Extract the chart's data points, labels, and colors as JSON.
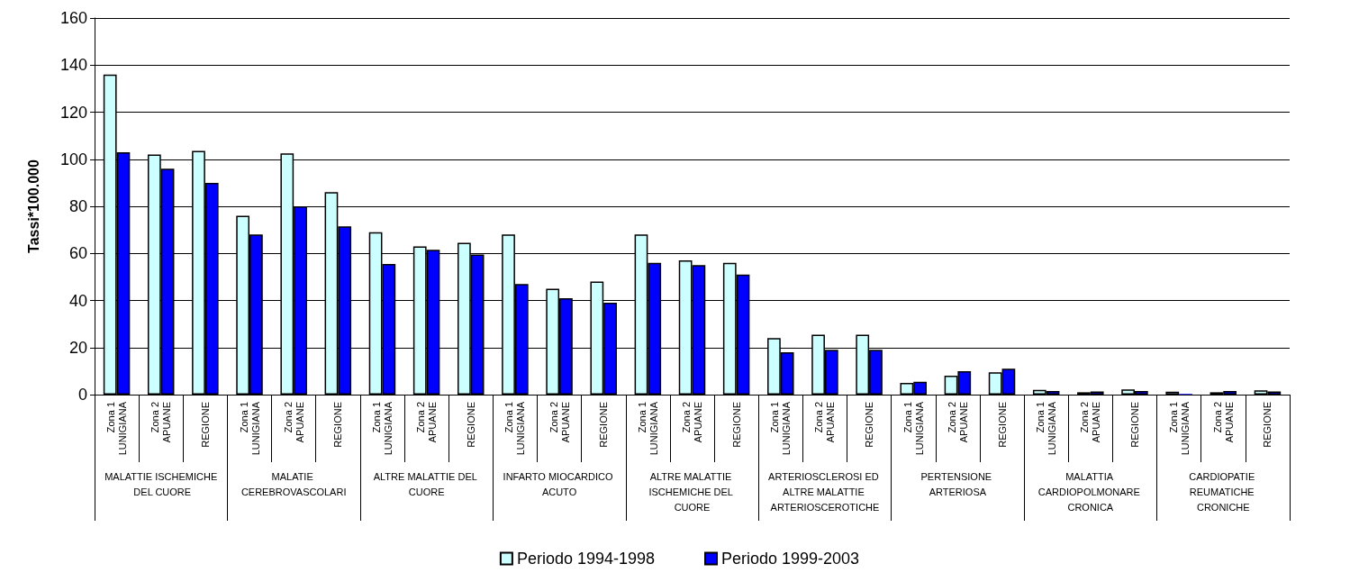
{
  "chart_data": {
    "type": "bar",
    "ylabel": "Tassi*100.000",
    "categories": [
      "Zona 1\nLUNIGIANA",
      "Zona 2\nAPUANE",
      "REGIONE",
      "Zona 1\nLUNIGIANA",
      "Zona 2\nAPUANE",
      "REGIONE",
      "Zona 1\nLUNIGIANA",
      "Zona 2\nAPUANE",
      "REGIONE",
      "Zona 1\nLUNIGIANA",
      "Zona 2\nAPUANE",
      "REGIONE",
      "Zona 1\nLUNIGIANA",
      "Zona 2\nAPUANE",
      "REGIONE",
      "Zona 1\nLUNIGIANA",
      "Zona 2\nAPUANE",
      "REGIONE",
      "Zona 1\nLUNIGIANA",
      "Zona 2\nAPUANE",
      "REGIONE",
      "Zona 1\nLUNIGIANA",
      "Zona 2\nAPUANE",
      "REGIONE",
      "Zona 1\nLUNIGIANA",
      "Zona 2\nAPUANE",
      "REGIONE"
    ],
    "series": [
      {
        "name": "Periodo 1994-1998",
        "color": "#ccffff",
        "values": [
          136,
          102,
          103.5,
          76,
          102.5,
          86,
          69,
          63,
          64.5,
          68,
          45,
          48,
          68,
          57,
          56,
          24,
          25.5,
          25.5,
          5,
          8,
          9.5,
          2,
          1,
          2.2,
          1.2,
          1,
          1.8
        ]
      },
      {
        "name": "Periodo 1999-2003",
        "color": "#0000ff",
        "values": [
          103,
          96,
          90,
          68,
          80,
          71.5,
          55.5,
          61.5,
          59.5,
          47,
          41,
          39,
          56,
          55,
          51,
          18,
          19,
          19,
          5.5,
          10,
          11,
          1.5,
          1.3,
          1.5,
          0.3,
          1.5,
          1.3
        ]
      }
    ],
    "annotations": [
      "MALATTIE ISCHEMICHE DEL CUORE",
      "MALATIE CEREBROVASCOLARI",
      "ALTRE MALATTIE DEL CUORE",
      "INFARTO MIOCARDICO ACUTO",
      "ALTRE MALATTIE ISCHEMICHE DEL CUORE",
      "ARTERIOSCLEROSI ED ALTRE MALATTIE ARTERIOSCEROTICHE",
      "PERTENSIONE ARTERIOSA",
      "MALATTIA CARDIOPOLMONARE CRONICA",
      "CARDIOPATIE REUMATICHE CRONICHE"
    ],
    "ylim": [
      0,
      160
    ],
    "yticks": [
      0,
      20,
      40,
      60,
      80,
      100,
      120,
      140,
      160
    ],
    "grid": "y",
    "legend": "bottom"
  }
}
